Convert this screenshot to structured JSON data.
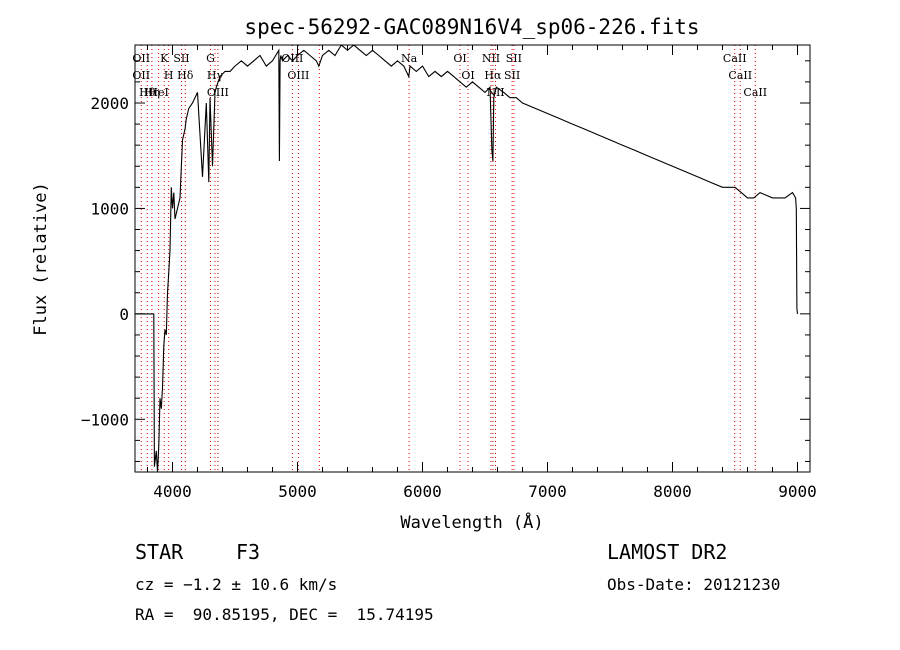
{
  "chart_data": {
    "type": "line",
    "title": "spec-56292-GAC089N16V4_sp06-226.fits",
    "xlabel": "Wavelength (Å)",
    "ylabel": "Flux (relative)",
    "xlim": [
      3700,
      9100
    ],
    "ylim": [
      -1500,
      2550
    ],
    "x_ticks": [
      4000,
      5000,
      6000,
      7000,
      8000,
      9000
    ],
    "x_tick_labels": [
      "4000",
      "5000",
      "6000",
      "7000",
      "8000",
      "9000"
    ],
    "y_ticks": [
      -1000,
      0,
      1000,
      2000
    ],
    "y_tick_labels": [
      "−1000",
      "0",
      "1000",
      "2000"
    ],
    "grid": false,
    "line_color": "#000000",
    "marker_color": "#e00000",
    "series": [
      {
        "x": [
          3700,
          3850,
          3855,
          3870,
          3880,
          3890,
          3900,
          3910,
          3920,
          3930,
          3940,
          3950,
          3960,
          3970,
          3980,
          3990,
          4000,
          4010,
          4020,
          4040,
          4060,
          4080,
          4100,
          4110,
          4130,
          4160,
          4200,
          4240,
          4270,
          4290,
          4300,
          4320,
          4340,
          4350,
          4380,
          4420,
          4460,
          4500,
          4550,
          4600,
          4650,
          4700,
          4750,
          4800,
          4850,
          4855,
          4861,
          4866,
          4880,
          4920,
          4960,
          5000,
          5050,
          5100,
          5150,
          5170,
          5200,
          5250,
          5300,
          5350,
          5400,
          5450,
          5500,
          5550,
          5600,
          5650,
          5700,
          5750,
          5800,
          5850,
          5890,
          5900,
          5950,
          6000,
          6050,
          6100,
          6150,
          6200,
          6250,
          6300,
          6350,
          6400,
          6450,
          6500,
          6540,
          6555,
          6563,
          6570,
          6590,
          6650,
          6700,
          6750,
          6800,
          6900,
          7000,
          7100,
          7200,
          7300,
          7400,
          7500,
          7600,
          7700,
          7800,
          7900,
          8000,
          8100,
          8200,
          8300,
          8400,
          8500,
          8550,
          8600,
          8650,
          8700,
          8800,
          8900,
          8960,
          8985,
          8990,
          8995,
          9000
        ],
        "y": [
          0,
          0,
          -1450,
          -1300,
          -1500,
          -1250,
          -800,
          -900,
          -700,
          -300,
          -150,
          -200,
          200,
          400,
          600,
          1200,
          1000,
          1150,
          900,
          1000,
          1100,
          1650,
          1750,
          1850,
          1950,
          2000,
          2100,
          1300,
          2000,
          1250,
          2050,
          1400,
          2100,
          2150,
          2250,
          2300,
          2300,
          2350,
          2400,
          2350,
          2400,
          2450,
          2350,
          2400,
          2500,
          1450,
          2400,
          2450,
          2400,
          2450,
          2400,
          2450,
          2500,
          2450,
          2400,
          2350,
          2450,
          2500,
          2450,
          2550,
          2500,
          2550,
          2500,
          2450,
          2500,
          2450,
          2400,
          2350,
          2400,
          2350,
          2250,
          2350,
          2300,
          2350,
          2250,
          2300,
          2250,
          2300,
          2250,
          2200,
          2150,
          2200,
          2150,
          2100,
          2150,
          1550,
          1450,
          2050,
          2150,
          2100,
          2050,
          2050,
          2000,
          1950,
          1900,
          1850,
          1800,
          1750,
          1700,
          1650,
          1600,
          1550,
          1500,
          1450,
          1400,
          1350,
          1300,
          1250,
          1200,
          1200,
          1150,
          1100,
          1100,
          1150,
          1100,
          1100,
          1150,
          1100,
          1000,
          50,
          0
        ]
      }
    ],
    "line_markers": [
      {
        "x": 3750,
        "labels": [
          "OII",
          "OII"
        ]
      },
      {
        "x": 3798,
        "labels": [
          "Hθ"
        ]
      },
      {
        "x": 3835,
        "labels": [
          "Hη"
        ]
      },
      {
        "x": 3889,
        "labels": [
          "HeI"
        ]
      },
      {
        "x": 3934,
        "labels": [
          "K"
        ]
      },
      {
        "x": 3969,
        "labels": [
          "H"
        ]
      },
      {
        "x": 4072,
        "labels": [
          "SII"
        ]
      },
      {
        "x": 4102,
        "labels": [
          "Hδ"
        ]
      },
      {
        "x": 4304,
        "labels": [
          "G"
        ]
      },
      {
        "x": 4340,
        "labels": [
          "Hγ"
        ]
      },
      {
        "x": 4363,
        "labels": [
          "OIII"
        ]
      },
      {
        "x": 4959,
        "labels": [
          "OIII"
        ]
      },
      {
        "x": 5007,
        "labels": [
          "OIII"
        ]
      },
      {
        "x": 5175,
        "labels": [
          ""
        ]
      },
      {
        "x": 5893,
        "labels": [
          "Na"
        ]
      },
      {
        "x": 6300,
        "labels": [
          "OI"
        ]
      },
      {
        "x": 6364,
        "labels": [
          "OI"
        ]
      },
      {
        "x": 6548,
        "labels": [
          "NII"
        ]
      },
      {
        "x": 6563,
        "labels": [
          "Hα"
        ]
      },
      {
        "x": 6584,
        "labels": [
          "NII"
        ]
      },
      {
        "x": 6717,
        "labels": [
          "SII"
        ]
      },
      {
        "x": 6731,
        "labels": [
          "SII"
        ]
      },
      {
        "x": 8498,
        "labels": [
          "CaII"
        ]
      },
      {
        "x": 8542,
        "labels": [
          "CaII"
        ]
      },
      {
        "x": 8662,
        "labels": [
          "CaII"
        ]
      }
    ]
  },
  "info": {
    "class_label": "STAR",
    "subclass_label": "F3",
    "survey": "LAMOST DR2",
    "cz": "cz = −1.2 ± 10.6 km/s",
    "obs_date": "Obs-Date: 20121230",
    "coords": "RA =  90.85195, DEC =  15.74195"
  }
}
